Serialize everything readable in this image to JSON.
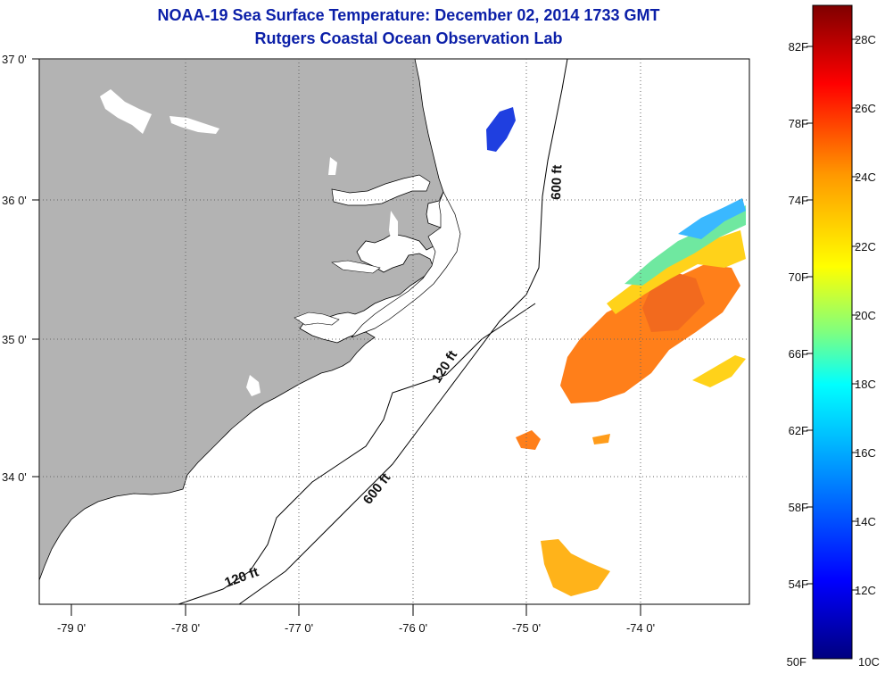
{
  "title": {
    "line1": "NOAA-19 Sea Surface Temperature:  December 02, 2014 1733 GMT",
    "line2": "Rutgers Coastal Ocean Observation Lab"
  },
  "map": {
    "lon_ticks": [
      "-79 0'",
      "-78 0'",
      "-77 0'",
      "-76 0'",
      "-75 0'",
      "-74 0'"
    ],
    "lat_ticks": [
      "37 0'",
      "36 0'",
      "35 0'",
      "34 0'"
    ],
    "land_color": "#b3b3b3",
    "contours": [
      {
        "label": "600 ft",
        "id": "c600-north"
      },
      {
        "label": "120 ft",
        "id": "c120-mid"
      },
      {
        "label": "600 ft",
        "id": "c600-south"
      },
      {
        "label": "120 ft",
        "id": "c120-south"
      }
    ]
  },
  "colorbar": {
    "fahrenheit_labels": [
      "82F",
      "78F",
      "74F",
      "70F",
      "66F",
      "62F",
      "58F",
      "54F",
      "50F"
    ],
    "celsius_labels": [
      "28C",
      "26C",
      "24C",
      "22C",
      "20C",
      "18C",
      "16C",
      "14C",
      "12C",
      "10C"
    ],
    "colors": [
      "#00007f",
      "#0000ff",
      "#007fff",
      "#00ffff",
      "#7fff7f",
      "#ffff00",
      "#ff7f00",
      "#ff0000",
      "#7f0000"
    ]
  }
}
